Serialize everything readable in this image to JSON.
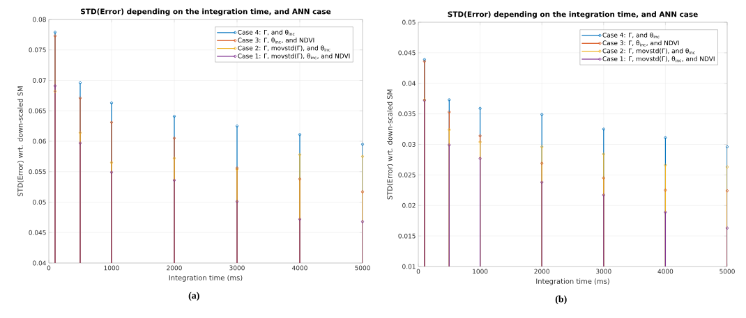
{
  "chart_data": [
    {
      "type": "lollipop",
      "title": "STD(Error) depending on the integration time, and ANN case",
      "xlabel": "Integration time (ms)",
      "ylabel": "STD(Error) wrt. down-scaled SM",
      "annotations": [
        "(a)"
      ],
      "x": [
        100,
        500,
        1000,
        2000,
        3000,
        4000,
        5000
      ],
      "xlim": [
        0,
        5000
      ],
      "xticks": [
        0,
        1000,
        2000,
        3000,
        4000,
        5000
      ],
      "ylim": [
        0.04,
        0.08
      ],
      "yticks": [
        0.04,
        0.045,
        0.05,
        0.055,
        0.06,
        0.065,
        0.07,
        0.075,
        0.08
      ],
      "grid": true,
      "legend": "top right",
      "marker": "circle",
      "series": [
        {
          "name": "Case 4: Γ, and θ$_{inc}$",
          "color": "#0072bd",
          "values": [
            0.0779,
            0.0696,
            0.0663,
            0.0641,
            0.0625,
            0.0611,
            0.0595
          ]
        },
        {
          "name": "Case 3: Γ, θ$_{inc}$, and NDVI",
          "color": "#d95319",
          "values": [
            0.0773,
            0.0671,
            0.0631,
            0.0605,
            0.0556,
            0.0538,
            0.0517
          ]
        },
        {
          "name": "Case 2: Γ, movstd(Γ), and θ$_{inc}$",
          "color": "#edb120",
          "values": [
            0.0682,
            0.0614,
            0.0565,
            0.0572,
            0.0554,
            0.0578,
            0.0575
          ]
        },
        {
          "name": "Case 1: Γ, movstd(Γ), θ$_{inc}$, and NDVI",
          "color": "#7e2f8e",
          "values": [
            0.0691,
            0.0597,
            0.0549,
            0.0536,
            0.0501,
            0.0472,
            0.0468
          ]
        }
      ]
    },
    {
      "type": "lollipop",
      "title": "STD(Error) depending on the integration time, and ANN case",
      "xlabel": "Integration time (ms)",
      "ylabel": "STD(Error) wrt. down-scaled SM",
      "annotations": [
        "(b)"
      ],
      "x": [
        100,
        500,
        1000,
        2000,
        3000,
        4000,
        5000
      ],
      "xlim": [
        0,
        5000
      ],
      "xticks": [
        0,
        1000,
        2000,
        3000,
        4000,
        5000
      ],
      "ylim": [
        0.01,
        0.05
      ],
      "yticks": [
        0.01,
        0.015,
        0.02,
        0.025,
        0.03,
        0.035,
        0.04,
        0.045,
        0.05
      ],
      "grid": true,
      "legend": "top right",
      "marker": "circle",
      "series": [
        {
          "name": "Case 4: Γ, and θ$_{inc}$",
          "color": "#0072bd",
          "values": [
            0.0439,
            0.0373,
            0.0359,
            0.0349,
            0.0325,
            0.0311,
            0.0296
          ]
        },
        {
          "name": "Case 3: Γ, θ$_{inc}$, and NDVI",
          "color": "#d95319",
          "values": [
            0.0436,
            0.0353,
            0.0314,
            0.0269,
            0.0245,
            0.0225,
            0.0224
          ]
        },
        {
          "name": "Case 2: Γ, movstd(Γ), and θ$_{inc}$",
          "color": "#edb120",
          "values": [
            0.0373,
            0.0324,
            0.0304,
            0.0296,
            0.0284,
            0.0266,
            0.0263
          ]
        },
        {
          "name": "Case 1: Γ, movstd(Γ), θ$_{inc}$, and NDVI",
          "color": "#7e2f8e",
          "values": [
            0.0372,
            0.0299,
            0.0277,
            0.0238,
            0.0217,
            0.0189,
            0.0163
          ]
        }
      ]
    }
  ]
}
